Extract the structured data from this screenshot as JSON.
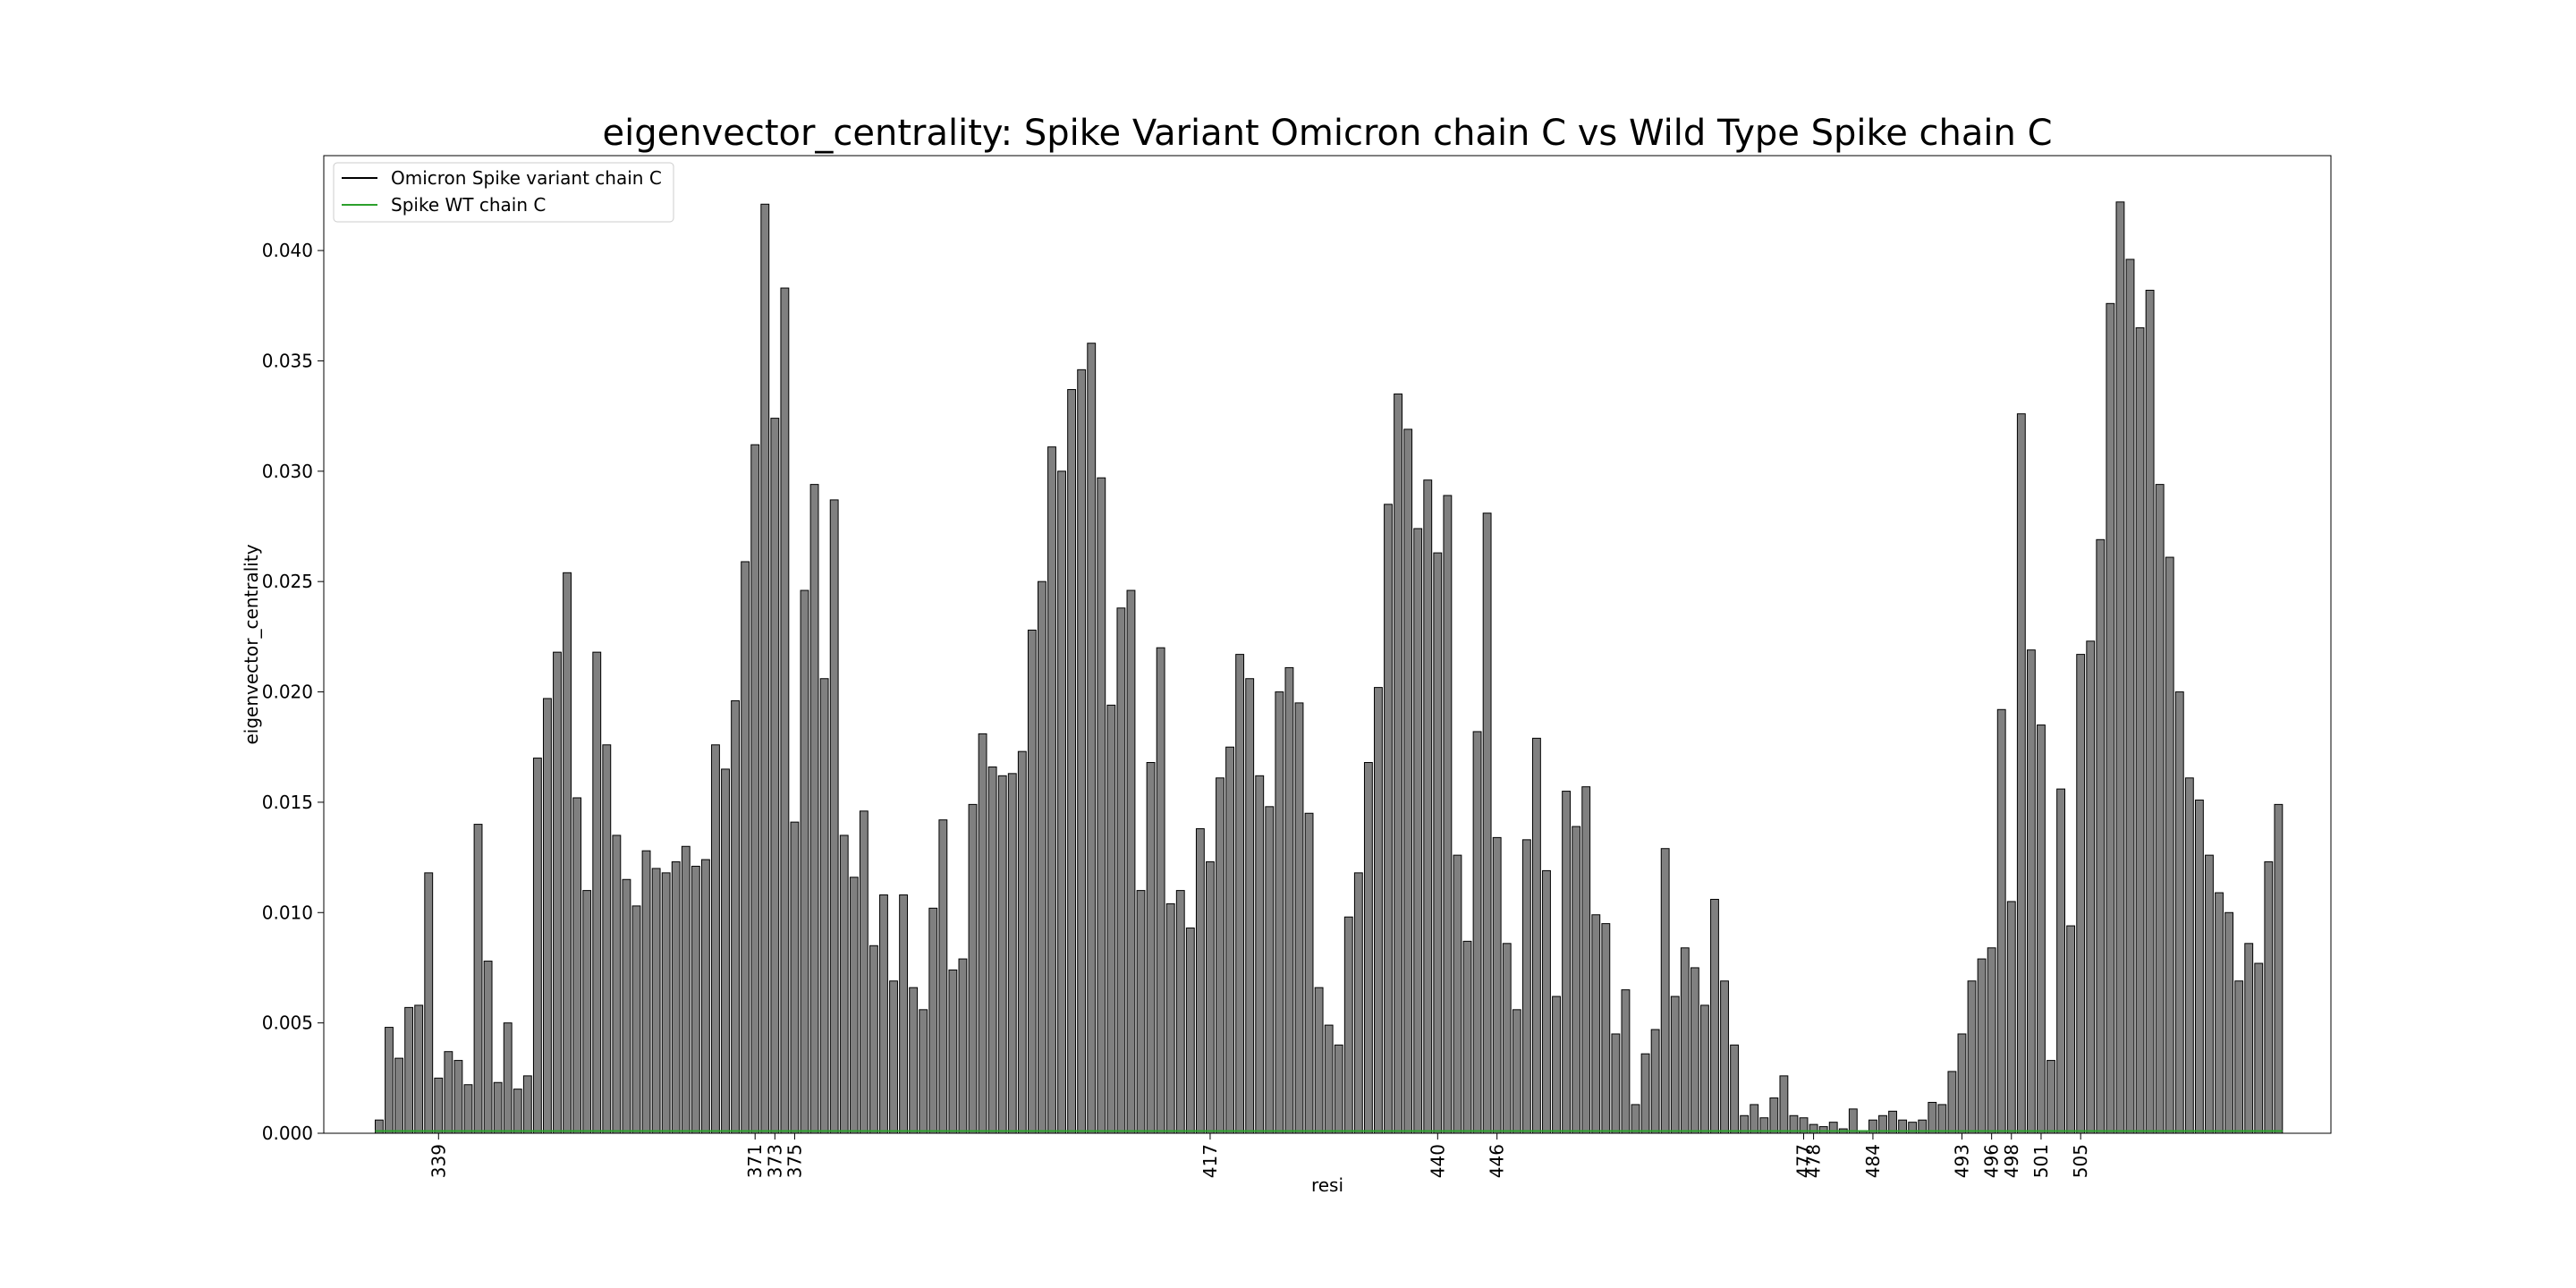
{
  "chart_data": {
    "type": "bar",
    "title": "eigenvector_centrality: Spike Variant Omicron chain C vs Wild Type Spike chain C",
    "xlabel": "resi",
    "ylabel": "eigenvector_centrality",
    "ylim": [
      0,
      0.0443
    ],
    "yticks": [
      0.0,
      0.005,
      0.01,
      0.015,
      0.02,
      0.025,
      0.03,
      0.035,
      0.04
    ],
    "ytick_labels": [
      "0.000",
      "0.005",
      "0.010",
      "0.015",
      "0.020",
      "0.025",
      "0.030",
      "0.035",
      "0.040"
    ],
    "x_start": 333,
    "x_tick_labels": [
      {
        "resi": 339,
        "label": "339"
      },
      {
        "resi": 371,
        "label": "371"
      },
      {
        "resi": 373,
        "label": "373"
      },
      {
        "resi": 375,
        "label": "375"
      },
      {
        "resi": 417,
        "label": "417"
      },
      {
        "resi": 440,
        "label": "440"
      },
      {
        "resi": 446,
        "label": "446"
      },
      {
        "resi": 477,
        "label": "477"
      },
      {
        "resi": 478,
        "label": "478"
      },
      {
        "resi": 484,
        "label": "484"
      },
      {
        "resi": 493,
        "label": "493"
      },
      {
        "resi": 496,
        "label": "496"
      },
      {
        "resi": 498,
        "label": "498"
      },
      {
        "resi": 501,
        "label": "501"
      },
      {
        "resi": 505,
        "label": "505"
      }
    ],
    "grid": false,
    "legend_position": "top-left",
    "series": [
      {
        "name": "Omicron Spike variant chain C",
        "style": "bar",
        "color": "#808080",
        "edge_color": "#000000",
        "values": [
          0.0006,
          0.0048,
          0.0034,
          0.0057,
          0.0058,
          0.0118,
          0.0025,
          0.0037,
          0.0033,
          0.0022,
          0.014,
          0.0078,
          0.0023,
          0.005,
          0.002,
          0.0026,
          0.017,
          0.0197,
          0.0218,
          0.0254,
          0.0152,
          0.011,
          0.0218,
          0.0176,
          0.0135,
          0.0115,
          0.0103,
          0.0128,
          0.012,
          0.0118,
          0.0123,
          0.013,
          0.0121,
          0.0124,
          0.0176,
          0.0165,
          0.0196,
          0.0259,
          0.0312,
          0.0421,
          0.0324,
          0.0383,
          0.0141,
          0.0246,
          0.0294,
          0.0206,
          0.0287,
          0.0135,
          0.0116,
          0.0146,
          0.0085,
          0.0108,
          0.0069,
          0.0108,
          0.0066,
          0.0056,
          0.0102,
          0.0142,
          0.0074,
          0.0079,
          0.0149,
          0.0181,
          0.0166,
          0.0162,
          0.0163,
          0.0173,
          0.0228,
          0.025,
          0.0311,
          0.03,
          0.0337,
          0.0346,
          0.0358,
          0.0297,
          0.0194,
          0.0238,
          0.0246,
          0.011,
          0.0168,
          0.022,
          0.0104,
          0.011,
          0.0093,
          0.0138,
          0.0123,
          0.0161,
          0.0175,
          0.0217,
          0.0206,
          0.0162,
          0.0148,
          0.02,
          0.0211,
          0.0195,
          0.0145,
          0.0066,
          0.0049,
          0.004,
          0.0098,
          0.0118,
          0.0168,
          0.0202,
          0.0285,
          0.0335,
          0.0319,
          0.0274,
          0.0296,
          0.0263,
          0.0289,
          0.0126,
          0.0087,
          0.0182,
          0.0281,
          0.0134,
          0.0086,
          0.0056,
          0.0133,
          0.0179,
          0.0119,
          0.0062,
          0.0155,
          0.0139,
          0.0157,
          0.0099,
          0.0095,
          0.0045,
          0.0065,
          0.0013,
          0.0036,
          0.0047,
          0.0129,
          0.0062,
          0.0084,
          0.0075,
          0.0058,
          0.0106,
          0.0069,
          0.004,
          0.0008,
          0.0013,
          0.0007,
          0.0016,
          0.0026,
          0.0008,
          0.0007,
          0.0004,
          0.0003,
          0.0005,
          0.0002,
          0.0011,
          0.0001,
          0.0006,
          0.0008,
          0.001,
          0.0006,
          0.0005,
          0.0006,
          0.0014,
          0.0013,
          0.0028,
          0.0045,
          0.0069,
          0.0079,
          0.0084,
          0.0192,
          0.0105,
          0.0326,
          0.0219,
          0.0185,
          0.0033,
          0.0156,
          0.0094,
          0.0217,
          0.0223,
          0.0269,
          0.0376,
          0.0422,
          0.0396,
          0.0365,
          0.0382,
          0.0294,
          0.0261,
          0.02,
          0.0161,
          0.0151,
          0.0126,
          0.0109,
          0.01,
          0.0069,
          0.0086,
          0.0077,
          0.0123,
          0.0149
        ]
      },
      {
        "name": "Spike WT chain C",
        "style": "line",
        "color": "#2ca02c",
        "value": 0.0001
      }
    ]
  }
}
